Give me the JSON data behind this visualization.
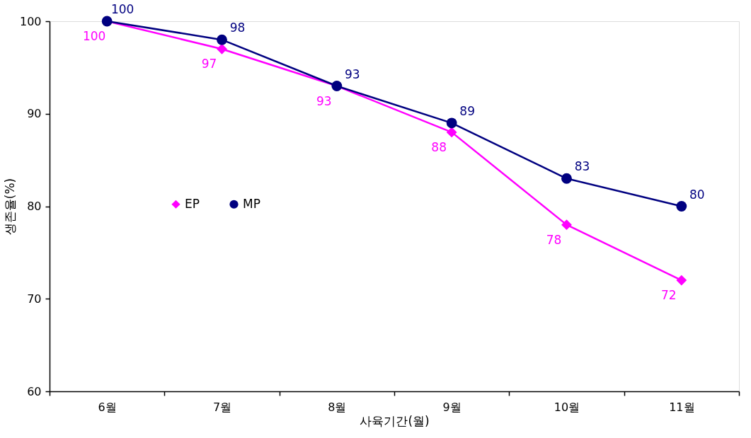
{
  "chart_data": {
    "type": "line",
    "xlabel": "사육기간(월)",
    "ylabel": "생존율(%)",
    "categories": [
      "6월",
      "7월",
      "8월",
      "9월",
      "10월",
      "11월"
    ],
    "series": [
      {
        "name": "EP",
        "color": "#ff00ff",
        "marker": "diamond",
        "values": [
          100,
          97,
          93,
          88,
          78,
          72
        ]
      },
      {
        "name": "MP",
        "color": "#000080",
        "marker": "circle",
        "values": [
          100,
          98,
          93,
          89,
          83,
          80
        ]
      }
    ],
    "ylim": [
      60,
      100
    ],
    "yticks": [
      60,
      70,
      80,
      90,
      100
    ],
    "grid": false,
    "legend": "left",
    "data_labels": true,
    "line_style": "solid"
  }
}
